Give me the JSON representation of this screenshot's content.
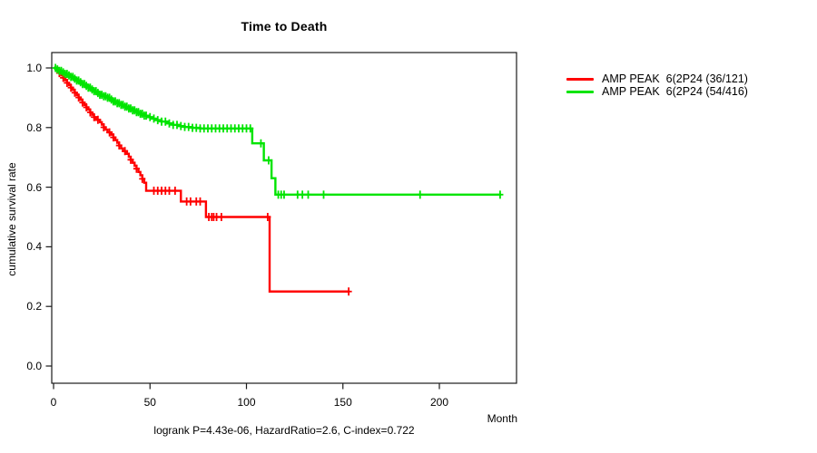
{
  "chart_data": {
    "type": "line",
    "subtype": "kaplan_meier_step",
    "title": "Time to Death",
    "xlabel": "Month",
    "ylabel": "cumulative survival rate",
    "annotation": "logrank P=4.43e-06, HazardRatio=2.6, C-index=0.722",
    "x_ticks": [
      0,
      50,
      100,
      150,
      200
    ],
    "y_tick_labels": [
      "0.0",
      "0.2",
      "0.4",
      "0.6",
      "0.8",
      "1.0"
    ],
    "y_tick_values": [
      0.0,
      0.2,
      0.4,
      0.6,
      0.8,
      1.0
    ],
    "xlim": [
      0,
      240
    ],
    "ylim": [
      0.0,
      1.0
    ],
    "grid": false,
    "legend_position": "right-outside",
    "series": [
      {
        "name": "AMP PEAK  6(2P24 (36/121)",
        "color": "#ff0000",
        "events_over_n": "36/121",
        "end_month": 153.5,
        "steps": [
          [
            0,
            1.0
          ],
          [
            2,
            0.992
          ],
          [
            3,
            0.983
          ],
          [
            4,
            0.975
          ],
          [
            5,
            0.967
          ],
          [
            6,
            0.959
          ],
          [
            7,
            0.95
          ],
          [
            8,
            0.942
          ],
          [
            9,
            0.934
          ],
          [
            10,
            0.926
          ],
          [
            11,
            0.917
          ],
          [
            12,
            0.909
          ],
          [
            13,
            0.901
          ],
          [
            14,
            0.893
          ],
          [
            15,
            0.884
          ],
          [
            16,
            0.876
          ],
          [
            17,
            0.868
          ],
          [
            18,
            0.86
          ],
          [
            19,
            0.851
          ],
          [
            20,
            0.843
          ],
          [
            21,
            0.835
          ],
          [
            22,
            0.826
          ],
          [
            24,
            0.818
          ],
          [
            25,
            0.81
          ],
          [
            26,
            0.801
          ],
          [
            27,
            0.793
          ],
          [
            28,
            0.784
          ],
          [
            30,
            0.776
          ],
          [
            31,
            0.767
          ],
          [
            32,
            0.758
          ],
          [
            33,
            0.749
          ],
          [
            34,
            0.74
          ],
          [
            35,
            0.73
          ],
          [
            36,
            0.721
          ],
          [
            38,
            0.712
          ],
          [
            39,
            0.702
          ],
          [
            40,
            0.692
          ],
          [
            41,
            0.682
          ],
          [
            42,
            0.672
          ],
          [
            43,
            0.662
          ],
          [
            44,
            0.651
          ],
          [
            45,
            0.64
          ],
          [
            46,
            0.628
          ],
          [
            47,
            0.615
          ],
          [
            48,
            0.588
          ],
          [
            66,
            0.552
          ],
          [
            79,
            0.5
          ],
          [
            112,
            0.25
          ]
        ],
        "censor_months": [
          3,
          5,
          7,
          9,
          11,
          13,
          15,
          17,
          19,
          21,
          23,
          26,
          29,
          31,
          34,
          37,
          40,
          43,
          46,
          52,
          54,
          56,
          58,
          60,
          63,
          69,
          71,
          74,
          76,
          80.5,
          82,
          83,
          84.5,
          87,
          111,
          153
        ]
      },
      {
        "name": "AMP PEAK  6(2P24 (54/416)",
        "color": "#00e400",
        "events_over_n": "54/416",
        "end_month": 232,
        "steps": [
          [
            0,
            1.0
          ],
          [
            1.5,
            0.995
          ],
          [
            3,
            0.99
          ],
          [
            4.5,
            0.985
          ],
          [
            6,
            0.98
          ],
          [
            7.5,
            0.975
          ],
          [
            9,
            0.97
          ],
          [
            10.5,
            0.964
          ],
          [
            12,
            0.958
          ],
          [
            13.5,
            0.952
          ],
          [
            15,
            0.946
          ],
          [
            16.5,
            0.94
          ],
          [
            18,
            0.934
          ],
          [
            19.5,
            0.928
          ],
          [
            21,
            0.922
          ],
          [
            22.5,
            0.916
          ],
          [
            24,
            0.91
          ],
          [
            26,
            0.905
          ],
          [
            28,
            0.9
          ],
          [
            29.5,
            0.894
          ],
          [
            31,
            0.888
          ],
          [
            33,
            0.882
          ],
          [
            35,
            0.876
          ],
          [
            37,
            0.87
          ],
          [
            39,
            0.864
          ],
          [
            41,
            0.858
          ],
          [
            43,
            0.852
          ],
          [
            45,
            0.846
          ],
          [
            47,
            0.84
          ],
          [
            49,
            0.835
          ],
          [
            51,
            0.83
          ],
          [
            53,
            0.825
          ],
          [
            56,
            0.82
          ],
          [
            59,
            0.814
          ],
          [
            62,
            0.809
          ],
          [
            65,
            0.805
          ],
          [
            68,
            0.802
          ],
          [
            72,
            0.799
          ],
          [
            76,
            0.797
          ],
          [
            103,
            0.747
          ],
          [
            109,
            0.69
          ],
          [
            113,
            0.63
          ],
          [
            115,
            0.575
          ]
        ],
        "censor_months": [
          1,
          2,
          3,
          4,
          5,
          6,
          7,
          8,
          9,
          10,
          11,
          12,
          13,
          14,
          15,
          16,
          17,
          18,
          19,
          20,
          21,
          22,
          23,
          24,
          25,
          26,
          27,
          28,
          29,
          30,
          31,
          32,
          33,
          34,
          35,
          36,
          37,
          38,
          39,
          40,
          41,
          42,
          43,
          44,
          45,
          46,
          47,
          48,
          50,
          52,
          54,
          56,
          58,
          60,
          62,
          64,
          66,
          68,
          70,
          72,
          74,
          76,
          78,
          80,
          82,
          84,
          86,
          88,
          90,
          92,
          94,
          96,
          98,
          100,
          102,
          107.5,
          111.5,
          116.5,
          118,
          119.5,
          126.5,
          129,
          132,
          140,
          190,
          231.5
        ]
      }
    ]
  }
}
